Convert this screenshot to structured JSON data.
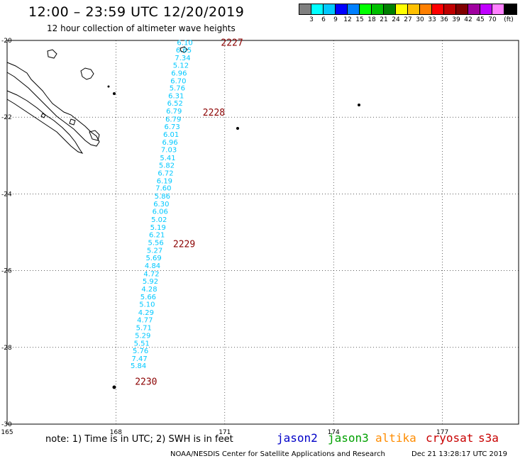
{
  "header": {
    "title": "12:00 – 23:59 UTC 12/20/2019",
    "subtitle": "12 hour collection of altimeter wave heights"
  },
  "legend": {
    "colors": [
      "#808080",
      "#00ffff",
      "#00c8ff",
      "#0000ff",
      "#0080ff",
      "#00ff00",
      "#00c000",
      "#008000",
      "#ffff00",
      "#ffc000",
      "#ff8000",
      "#ff0000",
      "#c00000",
      "#800000",
      "#a000a0",
      "#c000ff",
      "#ff80ff",
      "#000000"
    ],
    "labels": [
      "3",
      "6",
      "9",
      "12",
      "15",
      "18",
      "21",
      "24",
      "27",
      "30",
      "33",
      "36",
      "39",
      "42",
      "45",
      "70"
    ],
    "unit": "(ft)"
  },
  "axes": {
    "lat_labels": [
      "-20",
      "-22",
      "-24",
      "-26",
      "-28",
      "-30"
    ],
    "lon_labels": [
      "165",
      "168",
      "171",
      "174",
      "177"
    ]
  },
  "track": {
    "color": "#00c8ff",
    "points": [
      {
        "lat": -20.05,
        "lon": 169.9,
        "swh": "6.10"
      },
      {
        "lat": -20.24,
        "lon": 169.87,
        "swh": "6.65"
      },
      {
        "lat": -20.44,
        "lon": 169.84,
        "swh": "7.34"
      },
      {
        "lat": -20.64,
        "lon": 169.79,
        "swh": "5.12"
      },
      {
        "lat": -20.84,
        "lon": 169.74,
        "swh": "6.96"
      },
      {
        "lat": -21.04,
        "lon": 169.72,
        "swh": "6.70"
      },
      {
        "lat": -21.23,
        "lon": 169.69,
        "swh": "5.76"
      },
      {
        "lat": -21.43,
        "lon": 169.66,
        "swh": "6.31"
      },
      {
        "lat": -21.63,
        "lon": 169.63,
        "swh": "6.52"
      },
      {
        "lat": -21.83,
        "lon": 169.6,
        "swh": "6.79"
      },
      {
        "lat": -22.04,
        "lon": 169.58,
        "swh": "6.79"
      },
      {
        "lat": -22.24,
        "lon": 169.55,
        "swh": "6.73"
      },
      {
        "lat": -22.44,
        "lon": 169.52,
        "swh": "6.01"
      },
      {
        "lat": -22.64,
        "lon": 169.49,
        "swh": "6.96"
      },
      {
        "lat": -22.84,
        "lon": 169.46,
        "swh": "7.03"
      },
      {
        "lat": -23.05,
        "lon": 169.43,
        "swh": "5.41"
      },
      {
        "lat": -23.24,
        "lon": 169.4,
        "swh": "5.82"
      },
      {
        "lat": -23.45,
        "lon": 169.37,
        "swh": "6.72"
      },
      {
        "lat": -23.65,
        "lon": 169.34,
        "swh": "6.19"
      },
      {
        "lat": -23.84,
        "lon": 169.31,
        "swh": "7.60"
      },
      {
        "lat": -24.05,
        "lon": 169.28,
        "swh": "5.86"
      },
      {
        "lat": -24.25,
        "lon": 169.25,
        "swh": "6.30"
      },
      {
        "lat": -24.45,
        "lon": 169.22,
        "swh": "6.06"
      },
      {
        "lat": -24.66,
        "lon": 169.19,
        "swh": "5.02"
      },
      {
        "lat": -24.86,
        "lon": 169.16,
        "swh": "5.19"
      },
      {
        "lat": -25.06,
        "lon": 169.13,
        "swh": "6.21"
      },
      {
        "lat": -25.26,
        "lon": 169.1,
        "swh": "5.56"
      },
      {
        "lat": -25.46,
        "lon": 169.07,
        "swh": "5.27"
      },
      {
        "lat": -25.66,
        "lon": 169.04,
        "swh": "5.69"
      },
      {
        "lat": -25.86,
        "lon": 169.01,
        "swh": "4.84"
      },
      {
        "lat": -26.07,
        "lon": 168.98,
        "swh": "4.72"
      },
      {
        "lat": -26.27,
        "lon": 168.95,
        "swh": "5.92"
      },
      {
        "lat": -26.47,
        "lon": 168.92,
        "swh": "4.28"
      },
      {
        "lat": -26.67,
        "lon": 168.89,
        "swh": "5.66"
      },
      {
        "lat": -26.87,
        "lon": 168.86,
        "swh": "5.10"
      },
      {
        "lat": -27.08,
        "lon": 168.83,
        "swh": "4.29"
      },
      {
        "lat": -27.27,
        "lon": 168.8,
        "swh": "4.77"
      },
      {
        "lat": -27.48,
        "lon": 168.77,
        "swh": "5.71"
      },
      {
        "lat": -27.68,
        "lon": 168.74,
        "swh": "5.29"
      },
      {
        "lat": -27.88,
        "lon": 168.71,
        "swh": "5.51"
      },
      {
        "lat": -28.08,
        "lon": 168.68,
        "swh": "5.76"
      },
      {
        "lat": -28.28,
        "lon": 168.65,
        "swh": "7.47"
      },
      {
        "lat": -28.47,
        "lon": 168.62,
        "swh": "5.84"
      }
    ],
    "time_marks": [
      {
        "lat": -20.05,
        "lon": 171.2,
        "label": "2227"
      },
      {
        "lat": -21.87,
        "lon": 170.7,
        "label": "2228"
      },
      {
        "lat": -25.3,
        "lon": 169.88,
        "label": "2229"
      },
      {
        "lat": -28.88,
        "lon": 168.83,
        "label": "2230"
      }
    ]
  },
  "footer": {
    "note": "note: 1) Time is in UTC; 2) SWH is in feet",
    "satellites": [
      {
        "name": "jason2",
        "color": "#0000c8"
      },
      {
        "name": "jason3",
        "color": "#00a000"
      },
      {
        "name": "altika",
        "color": "#ff8c00"
      },
      {
        "name": "cryosat",
        "color": "#c80000"
      },
      {
        "name": "s3a",
        "color": "#c80000"
      }
    ],
    "credit": "NOAA/NESDIS Center for Satellite Applications and Research",
    "timestamp": "Dec 21 13:28:17 UTC 2019"
  }
}
